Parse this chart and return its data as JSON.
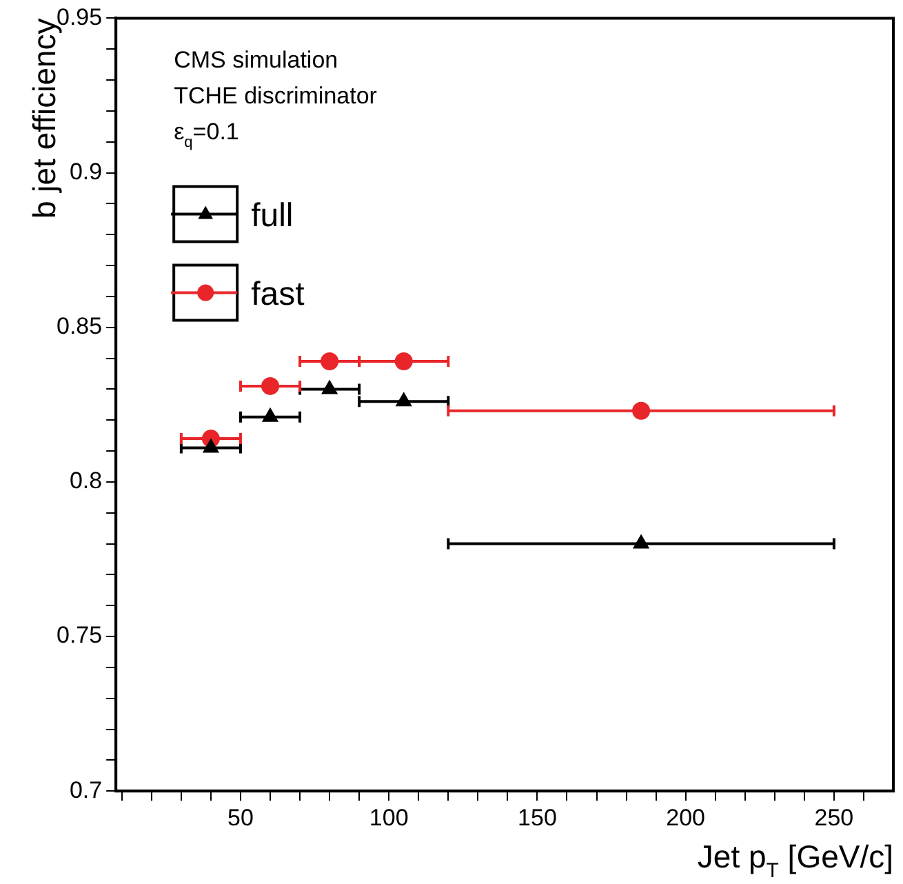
{
  "chart_data": {
    "type": "scatter",
    "xlabel": "Jet p$_{T}$ [GeV/c]",
    "ylabel": "b jet efficiency",
    "annotations": [
      "CMS simulation",
      "TCHE discriminator",
      "ε$_{q}$=0.1"
    ],
    "series": [
      {
        "name": "full",
        "color": "#000000",
        "marker": "triangle",
        "x": [
          40,
          60,
          80,
          105,
          185
        ],
        "values": [
          0.811,
          0.821,
          0.83,
          0.826,
          0.78
        ],
        "xerrors": [
          [
            30,
            50
          ],
          [
            50,
            70
          ],
          [
            70,
            90
          ],
          [
            90,
            120
          ],
          [
            120,
            250
          ]
        ]
      },
      {
        "name": "fast",
        "color": "#e8262a",
        "marker": "circle",
        "x": [
          40,
          60,
          80,
          105,
          185
        ],
        "values": [
          0.814,
          0.831,
          0.839,
          0.839,
          0.823
        ],
        "xerrors": [
          [
            30,
            50
          ],
          [
            50,
            70
          ],
          [
            70,
            90
          ],
          [
            90,
            120
          ],
          [
            120,
            250
          ]
        ]
      }
    ],
    "xlim": [
      8,
      270
    ],
    "xticks": [
      {
        "value": 10,
        "label": null
      },
      {
        "value": 20,
        "label": null
      },
      {
        "value": 30,
        "label": null
      },
      {
        "value": 40,
        "label": null
      },
      50,
      {
        "value": 60,
        "label": null
      },
      {
        "value": 70,
        "label": null
      },
      {
        "value": 80,
        "label": null
      },
      {
        "value": 90,
        "label": null
      },
      100,
      {
        "value": 110,
        "label": null
      },
      {
        "value": 120,
        "label": null
      },
      {
        "value": 130,
        "label": null
      },
      {
        "value": 140,
        "label": null
      },
      150,
      {
        "value": 160,
        "label": null
      },
      {
        "value": 170,
        "label": null
      },
      {
        "value": 180,
        "label": null
      },
      {
        "value": 190,
        "label": null
      },
      200,
      {
        "value": 210,
        "label": null
      },
      {
        "value": 220,
        "label": null
      },
      {
        "value": 230,
        "label": null
      },
      {
        "value": 240,
        "label": null
      },
      250,
      {
        "value": 260,
        "label": null
      }
    ],
    "ylim": [
      0.7,
      0.95
    ],
    "yticks": [
      0.7,
      {
        "value": 0.71,
        "label": null
      },
      {
        "value": 0.72,
        "label": null
      },
      {
        "value": 0.73,
        "label": null
      },
      {
        "value": 0.74,
        "label": null
      },
      0.75,
      {
        "value": 0.76,
        "label": null
      },
      {
        "value": 0.77,
        "label": null
      },
      {
        "value": 0.78,
        "label": null
      },
      {
        "value": 0.79,
        "label": null
      },
      0.8,
      {
        "value": 0.81,
        "label": null
      },
      {
        "value": 0.82,
        "label": null
      },
      {
        "value": 0.83,
        "label": null
      },
      {
        "value": 0.84,
        "label": null
      },
      0.85,
      {
        "value": 0.86,
        "label": null
      },
      {
        "value": 0.87,
        "label": null
      },
      {
        "value": 0.88,
        "label": null
      },
      {
        "value": 0.89,
        "label": null
      },
      0.9,
      {
        "value": 0.91,
        "label": null
      },
      {
        "value": 0.92,
        "label": null
      },
      {
        "value": 0.93,
        "label": null
      },
      {
        "value": 0.94,
        "label": null
      },
      0.95
    ],
    "grid": false,
    "legend": "top left"
  }
}
